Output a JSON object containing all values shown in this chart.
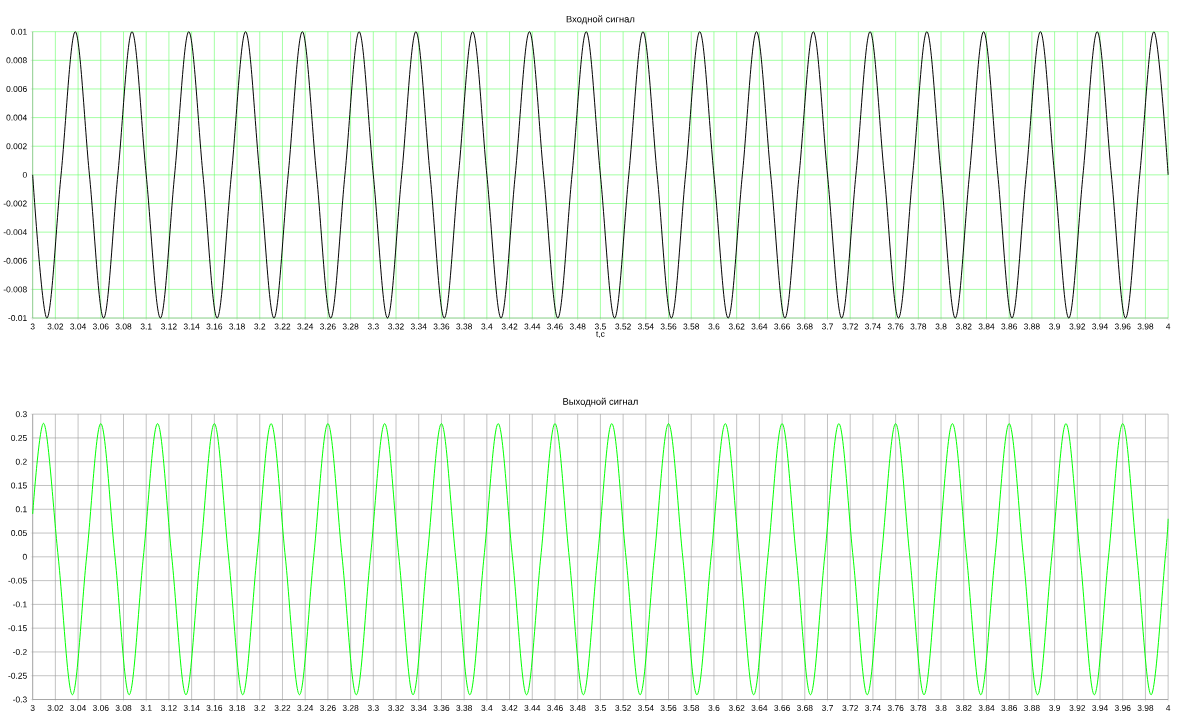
{
  "chart_data": [
    {
      "type": "line",
      "title": "Входной сигнал",
      "xlabel": "t,c",
      "grid": true,
      "xlim": [
        3,
        4
      ],
      "ylim": [
        -0.01,
        0.01
      ],
      "xticks": [
        3,
        3.02,
        3.04,
        3.06,
        3.08,
        3.1,
        3.12,
        3.14,
        3.16,
        3.18,
        3.2,
        3.22,
        3.24,
        3.26,
        3.28,
        3.3,
        3.32,
        3.34,
        3.36,
        3.38,
        3.4,
        3.42,
        3.44,
        3.46,
        3.48,
        3.5,
        3.52,
        3.54,
        3.56,
        3.58,
        3.6,
        3.62,
        3.64,
        3.66,
        3.68,
        3.7,
        3.72,
        3.74,
        3.76,
        3.78,
        3.8,
        3.82,
        3.84,
        3.86,
        3.88,
        3.9,
        3.92,
        3.94,
        3.96,
        3.98,
        4
      ],
      "yticks": [
        -0.01,
        -0.008,
        -0.006,
        -0.004,
        -0.002,
        0,
        0.002,
        0.004,
        0.006,
        0.008,
        0.01
      ],
      "x": [
        3,
        3.0125,
        3.025,
        3.0375,
        3.05,
        3.0625,
        3.075,
        3.0875,
        3.1,
        3.1125,
        3.125,
        3.1375,
        3.15,
        3.1625,
        3.175,
        3.1875,
        3.2,
        3.2125,
        3.225,
        3.2375,
        3.25,
        3.2625,
        3.275,
        3.2875,
        3.3,
        3.3125,
        3.325,
        3.3375,
        3.35,
        3.3625,
        3.375,
        3.3875,
        3.4,
        3.4125,
        3.425,
        3.4375,
        3.45,
        3.4625,
        3.475,
        3.4875,
        3.5,
        3.5125,
        3.525,
        3.5375,
        3.55,
        3.5625,
        3.575,
        3.5875,
        3.6,
        3.6125,
        3.625,
        3.6375,
        3.65,
        3.6625,
        3.675,
        3.6875,
        3.7,
        3.7125,
        3.725,
        3.7375,
        3.75,
        3.7625,
        3.775,
        3.7875,
        3.8,
        3.8125,
        3.825,
        3.8375,
        3.85,
        3.8625,
        3.875,
        3.8875,
        3.9,
        3.9125,
        3.925,
        3.9375,
        3.95,
        3.9625,
        3.975,
        3.9875,
        4
      ],
      "series": [
        {
          "color": "#000000",
          "values": [
            0,
            -0.01,
            0,
            0.01,
            0,
            -0.01,
            0,
            0.01,
            0,
            -0.01,
            0,
            0.01,
            0,
            -0.01,
            0,
            0.01,
            0,
            -0.01,
            0,
            0.01,
            0,
            -0.01,
            0,
            0.01,
            0,
            -0.01,
            0,
            0.01,
            0,
            -0.01,
            0,
            0.01,
            0,
            -0.01,
            0,
            0.01,
            0,
            -0.01,
            0,
            0.01,
            0,
            -0.01,
            0,
            0.01,
            0,
            -0.01,
            0,
            0.01,
            0,
            -0.01,
            0,
            0.01,
            0,
            -0.01,
            0,
            0.01,
            0,
            -0.01,
            0,
            0.01,
            0,
            -0.01,
            0,
            0.01,
            0,
            -0.01,
            0,
            0.01,
            0,
            -0.01,
            0,
            0.01,
            0,
            -0.01,
            0,
            0.01,
            0,
            -0.01,
            0,
            0.01,
            0
          ]
        }
      ]
    },
    {
      "type": "line",
      "title": "Выходной сигнал",
      "grid": true,
      "xlim": [
        3,
        4
      ],
      "ylim": [
        -0.3,
        0.3
      ],
      "xticks": [
        3,
        3.02,
        3.04,
        3.06,
        3.08,
        3.1,
        3.12,
        3.14,
        3.16,
        3.18,
        3.2,
        3.22,
        3.24,
        3.26,
        3.28,
        3.3,
        3.32,
        3.34,
        3.36,
        3.38,
        3.4,
        3.42,
        3.44,
        3.46,
        3.48,
        3.5,
        3.52,
        3.54,
        3.56,
        3.58,
        3.6,
        3.62,
        3.64,
        3.66,
        3.68,
        3.7,
        3.72,
        3.74,
        3.76,
        3.78,
        3.8,
        3.82,
        3.84,
        3.86,
        3.88,
        3.9,
        3.92,
        3.94,
        3.96,
        3.98,
        4
      ],
      "yticks": [
        -0.3,
        -0.25,
        -0.2,
        -0.15,
        -0.1,
        -0.05,
        0,
        0.05,
        0.1,
        0.15,
        0.2,
        0.25,
        0.3
      ],
      "x": [
        3,
        3.01,
        3.0225,
        3.035,
        3.0475,
        3.06,
        3.0725,
        3.085,
        3.0975,
        3.11,
        3.1225,
        3.135,
        3.1475,
        3.16,
        3.1725,
        3.185,
        3.1975,
        3.21,
        3.2225,
        3.235,
        3.2475,
        3.26,
        3.2725,
        3.285,
        3.2975,
        3.31,
        3.3225,
        3.335,
        3.3475,
        3.36,
        3.3725,
        3.385,
        3.3975,
        3.41,
        3.4225,
        3.435,
        3.4475,
        3.46,
        3.4725,
        3.485,
        3.4975,
        3.51,
        3.5225,
        3.535,
        3.5475,
        3.56,
        3.5725,
        3.585,
        3.5975,
        3.61,
        3.6225,
        3.635,
        3.6475,
        3.66,
        3.6725,
        3.685,
        3.6975,
        3.71,
        3.7225,
        3.735,
        3.7475,
        3.76,
        3.7725,
        3.785,
        3.7975,
        3.81,
        3.8225,
        3.835,
        3.8475,
        3.86,
        3.8725,
        3.885,
        3.8975,
        3.91,
        3.9225,
        3.935,
        3.9475,
        3.96,
        3.9725,
        3.985,
        3.9975,
        4
      ],
      "series": [
        {
          "color": "#00ff00",
          "values": [
            0.09,
            0.28,
            0,
            -0.29,
            0,
            0.28,
            0,
            -0.29,
            0,
            0.28,
            0,
            -0.29,
            0,
            0.28,
            0,
            -0.29,
            0,
            0.28,
            0,
            -0.29,
            0,
            0.28,
            0,
            -0.29,
            0,
            0.28,
            0,
            -0.29,
            0,
            0.28,
            0,
            -0.29,
            0,
            0.28,
            0,
            -0.29,
            0,
            0.28,
            0,
            -0.29,
            0,
            0.28,
            0,
            -0.29,
            0,
            0.28,
            0,
            -0.29,
            0,
            0.28,
            0,
            -0.29,
            0,
            0.28,
            0,
            -0.29,
            0,
            0.28,
            0,
            -0.29,
            0,
            0.28,
            0,
            -0.29,
            0,
            0.28,
            0,
            -0.29,
            0,
            0.28,
            0,
            -0.29,
            0,
            0.28,
            0,
            -0.29,
            0,
            0.28,
            0,
            -0.29,
            0,
            0.08
          ]
        }
      ]
    }
  ]
}
